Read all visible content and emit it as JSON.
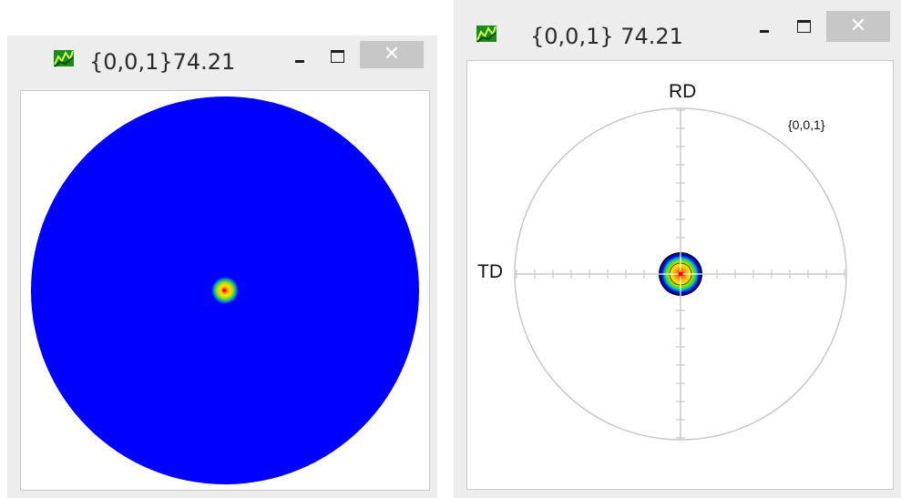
{
  "window1": {
    "title": "{0,0,1}74.21",
    "app_icon": "pole-figure-app-icon",
    "close_glyph": "✕"
  },
  "window2": {
    "title": "{0,0,1} 74.21",
    "app_icon": "pole-figure-app-icon",
    "close_glyph": "✕",
    "labels": {
      "rd": "RD",
      "td": "TD",
      "plane": "{0,0,1}"
    }
  },
  "colors": {
    "pole_fill_blue": "#0000ff",
    "ring_gray": "#c8c8c8",
    "titlebar_gray": "#ededed",
    "close_button_gray": "#c7c7c7"
  }
}
